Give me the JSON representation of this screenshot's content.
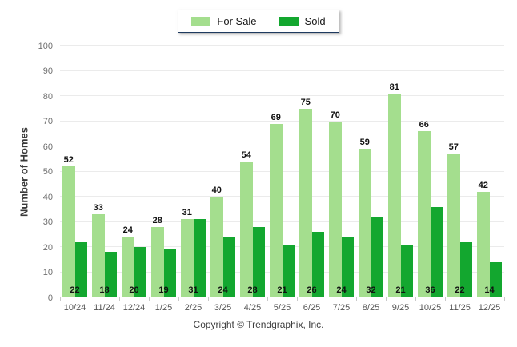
{
  "chart_data": {
    "type": "bar",
    "title": "",
    "categories": [
      "10/24",
      "11/24",
      "12/24",
      "1/25",
      "2/25",
      "3/25",
      "4/25",
      "5/25",
      "6/25",
      "7/25",
      "8/25",
      "9/25",
      "10/25",
      "11/25",
      "12/25"
    ],
    "series": [
      {
        "name": "For Sale",
        "color": "#A4DE8E",
        "values": [
          52,
          33,
          24,
          28,
          31,
          40,
          54,
          69,
          75,
          70,
          59,
          81,
          66,
          57,
          42
        ]
      },
      {
        "name": "Sold",
        "color": "#13A72F",
        "values": [
          22,
          18,
          20,
          19,
          31,
          24,
          28,
          21,
          26,
          24,
          32,
          21,
          36,
          22,
          14
        ]
      }
    ],
    "xlabel": "",
    "ylabel": "Number of Homes",
    "ylim": [
      0,
      100
    ],
    "ytick_step": 10,
    "grid": true,
    "legend_position": "top-center"
  },
  "legend": {
    "border_color": "#1e3a5f",
    "items": [
      {
        "label": "For Sale",
        "color": "#A4DE8E"
      },
      {
        "label": "Sold",
        "color": "#13A72F"
      }
    ]
  },
  "footer": {
    "copyright": "Copyright © Trendgraphix, Inc."
  }
}
